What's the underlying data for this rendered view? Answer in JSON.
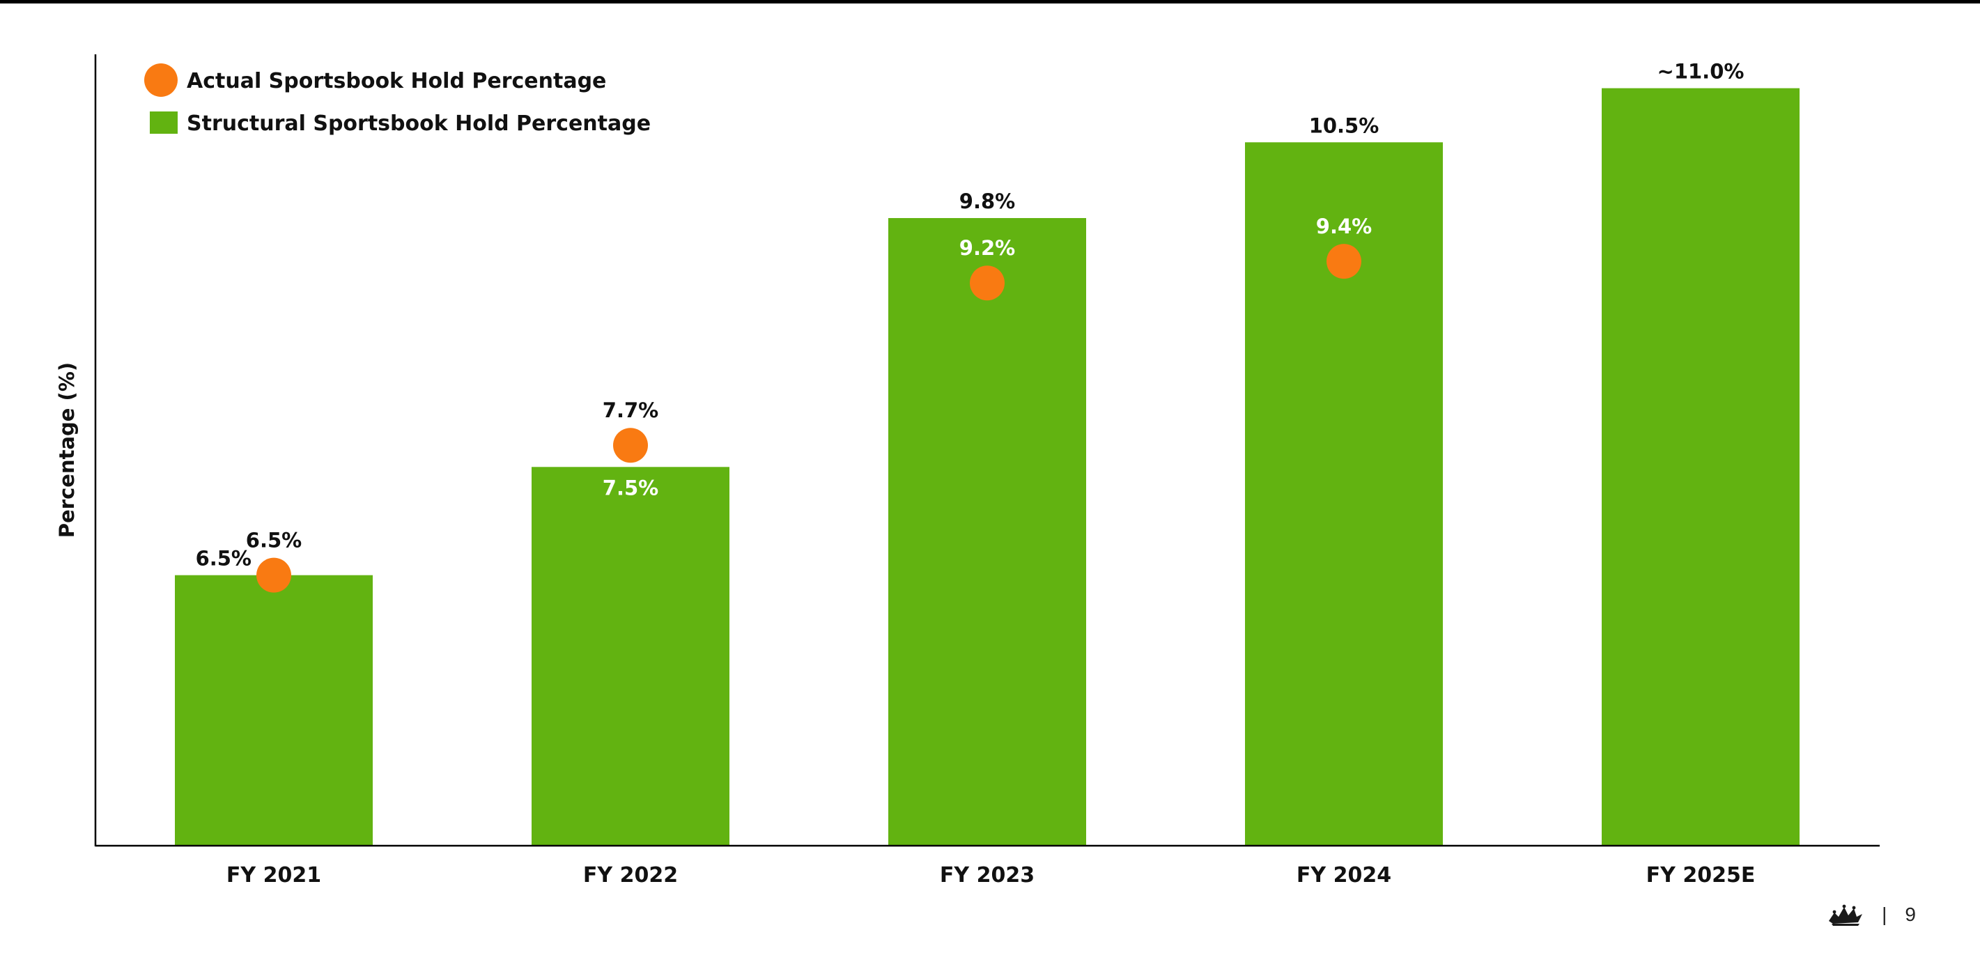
{
  "colors": {
    "structural": "#62B311",
    "actual": "#F97A12",
    "axis": "#000000",
    "label_dark": "#111111",
    "label_light": "#FFFFFF"
  },
  "chart_data": {
    "type": "bar",
    "title": "",
    "xlabel": "",
    "ylabel": "Percentage (%)",
    "ylim": [
      4,
      11.3
    ],
    "grid": false,
    "legend_position": "top-left",
    "categories": [
      "FY 2021",
      "FY 2022",
      "FY 2023",
      "FY 2024",
      "FY 2025E"
    ],
    "series": [
      {
        "name": "Structural Sportsbook Hold Percentage",
        "kind": "bar",
        "values": [
          6.5,
          7.5,
          9.8,
          10.5,
          11.0
        ],
        "labels": [
          "6.5%",
          "7.5%",
          "9.8%",
          "10.5%",
          "~11.0%"
        ]
      },
      {
        "name": "Actual Sportsbook Hold Percentage",
        "kind": "point",
        "values": [
          6.5,
          7.7,
          9.2,
          9.4,
          null
        ],
        "labels": [
          "6.5%",
          "7.7%",
          "9.2%",
          "9.4%",
          null
        ]
      }
    ]
  },
  "footer": {
    "icon": "crown-logo-icon",
    "separator": "|",
    "page_number": "9"
  }
}
